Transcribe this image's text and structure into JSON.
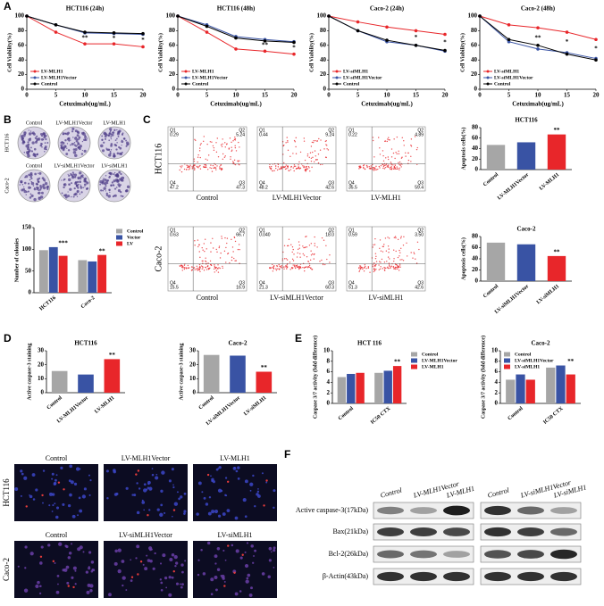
{
  "panel_labels": [
    "A",
    "B",
    "C",
    "D",
    "E",
    "F"
  ],
  "chart_data": [
    {
      "type": "line",
      "title": "HCT116 (24h)",
      "x_label": "Cetuximab(ug/mL)",
      "y_label": "Cell Viability(%)",
      "x": [
        0,
        5,
        10,
        15,
        20
      ],
      "xlim": [
        0,
        20
      ],
      "xticks": [
        0,
        5,
        10,
        15,
        20
      ],
      "ylim": [
        0,
        100
      ],
      "yticks": [
        0,
        20,
        40,
        60,
        80,
        100
      ],
      "series": [
        {
          "name": "LV-MLH1",
          "color": "#e8262a",
          "values": [
            100,
            78,
            62,
            62,
            58
          ]
        },
        {
          "name": "LV-MLH1Vector",
          "color": "#3953a4",
          "values": [
            100,
            88,
            77,
            76,
            75
          ]
        },
        {
          "name": "Control",
          "color": "#000000",
          "values": [
            100,
            88,
            78,
            77,
            76
          ]
        }
      ],
      "annotations": [
        "**",
        "*",
        "*"
      ],
      "legend": "lower left"
    },
    {
      "type": "line",
      "title": "HCT116 (48h)",
      "x_label": "Cetuximab(ug/mL)",
      "y_label": "Cell Viability(%)",
      "x": [
        0,
        5,
        10,
        15,
        20
      ],
      "xlim": [
        0,
        20
      ],
      "xticks": [
        0,
        5,
        10,
        15,
        20
      ],
      "ylim": [
        0,
        100
      ],
      "yticks": [
        0,
        20,
        40,
        60,
        80,
        100
      ],
      "series": [
        {
          "name": "LV-MLH1",
          "color": "#e8262a",
          "values": [
            100,
            78,
            55,
            52,
            48
          ]
        },
        {
          "name": "LV-MLH1Vector",
          "color": "#3953a4",
          "values": [
            100,
            88,
            72,
            68,
            65
          ]
        },
        {
          "name": "Control",
          "color": "#000000",
          "values": [
            100,
            86,
            70,
            66,
            64
          ]
        }
      ],
      "annotations": [
        "**",
        "*"
      ],
      "legend": "lower left"
    },
    {
      "type": "line",
      "title": "Caco-2  (24h)",
      "x_label": "Cetuximab(ug/mL)",
      "y_label": "Cell Viability(%)",
      "x": [
        0,
        5,
        10,
        15,
        20
      ],
      "xlim": [
        0,
        20
      ],
      "xticks": [
        0,
        5,
        10,
        15,
        20
      ],
      "ylim": [
        0,
        100
      ],
      "yticks": [
        0,
        20,
        40,
        60,
        80,
        100
      ],
      "series": [
        {
          "name": "LV-siMLH1",
          "color": "#e8262a",
          "values": [
            100,
            92,
            85,
            80,
            75
          ]
        },
        {
          "name": "LV-siMLH1Vector",
          "color": "#3953a4",
          "values": [
            100,
            80,
            65,
            60,
            52
          ]
        },
        {
          "name": "Control",
          "color": "#000000",
          "values": [
            100,
            80,
            67,
            60,
            53
          ]
        }
      ],
      "annotations": [
        "*",
        "*"
      ],
      "legend": "lower left"
    },
    {
      "type": "line",
      "title": "Caco-2  (48h)",
      "x_label": "Cetuximab(ug/mL)",
      "y_label": "Cell Viability(%)",
      "x": [
        0,
        5,
        10,
        15,
        20
      ],
      "xlim": [
        0,
        20
      ],
      "xticks": [
        0,
        5,
        10,
        15,
        20
      ],
      "ylim": [
        0,
        100
      ],
      "yticks": [
        0,
        20,
        40,
        60,
        80,
        100
      ],
      "series": [
        {
          "name": "LV-siMLH1",
          "color": "#e8262a",
          "values": [
            100,
            88,
            84,
            78,
            68
          ]
        },
        {
          "name": "LV-siMLH1Vector",
          "color": "#3953a4",
          "values": [
            100,
            65,
            55,
            50,
            42
          ]
        },
        {
          "name": "Control",
          "color": "#000000",
          "values": [
            100,
            68,
            60,
            48,
            40
          ]
        }
      ],
      "annotations": [
        "**",
        "*",
        "*"
      ],
      "legend": "lower left"
    },
    {
      "type": "bar",
      "y_label": "Number of colonies",
      "categories": [
        "HCT116",
        "Caco-2"
      ],
      "ylim": [
        0,
        150
      ],
      "yticks": [
        0,
        50,
        100,
        150
      ],
      "series": [
        {
          "name": "Control",
          "color": "#a6a6a6",
          "values": [
            98,
            75
          ]
        },
        {
          "name": "Vector",
          "color": "#3953a4",
          "values": [
            105,
            72
          ]
        },
        {
          "name": "LV",
          "color": "#e8262a",
          "values": [
            85,
            87
          ]
        }
      ],
      "annotations": [
        "***",
        "**"
      ],
      "legend": "right"
    },
    {
      "type": "bar",
      "title": "HCT116",
      "y_label": "Apoptosis cells(%)",
      "categories": [
        "Control",
        "LV-MLH1Vector",
        "LV-MLH1"
      ],
      "values": [
        47,
        52,
        67
      ],
      "colors": [
        "#a6a6a6",
        "#3953a4",
        "#e8262a"
      ],
      "ylim": [
        0,
        80
      ],
      "yticks": [
        0,
        20,
        40,
        60,
        80
      ],
      "annotations": [
        "**"
      ]
    },
    {
      "type": "bar",
      "title": "Caco-2",
      "y_label": "Apoptosis cells(%)",
      "categories": [
        "Control",
        "LV-siMLH1Vector",
        "LV-siMLH1"
      ],
      "values": [
        69,
        66,
        45
      ],
      "colors": [
        "#a6a6a6",
        "#3953a4",
        "#e8262a"
      ],
      "ylim": [
        0,
        80
      ],
      "yticks": [
        0,
        20,
        40,
        60,
        80
      ],
      "annotations": [
        "**"
      ]
    },
    {
      "type": "bar",
      "title": "HCT116",
      "y_label": "Active caspase-3 staining",
      "categories": [
        "Control",
        "LV-MLH1Vector",
        "LV-MLH1"
      ],
      "values": [
        15.5,
        13,
        24
      ],
      "colors": [
        "#a6a6a6",
        "#3953a4",
        "#e8262a"
      ],
      "ylim": [
        0,
        30
      ],
      "yticks": [
        0,
        10,
        20,
        30
      ],
      "annotations": [
        "**"
      ]
    },
    {
      "type": "bar",
      "title": "Caco-2",
      "y_label": "Active caspase-3 staining",
      "categories": [
        "Control",
        "LV-siMLH1Vector",
        "LV-siMLH1"
      ],
      "values": [
        27,
        26.5,
        15
      ],
      "colors": [
        "#a6a6a6",
        "#3953a4",
        "#e8262a"
      ],
      "ylim": [
        0,
        30
      ],
      "yticks": [
        0,
        10,
        20,
        30
      ],
      "annotations": [
        "**"
      ]
    },
    {
      "type": "bar",
      "title": "HCT 116",
      "y_label": "Caspase 3/7 activity (fold difference)",
      "categories": [
        "Control",
        "IC50 CTX"
      ],
      "ylim": [
        0,
        10
      ],
      "yticks": [
        0,
        2,
        4,
        6,
        8,
        10
      ],
      "series": [
        {
          "name": "Control",
          "color": "#a6a6a6",
          "values": [
            5,
            5.8
          ]
        },
        {
          "name": "LV-MLH1Vector",
          "color": "#3953a4",
          "values": [
            5.6,
            6.2
          ]
        },
        {
          "name": "LV-MLH1",
          "color": "#e8262a",
          "values": [
            5.8,
            7.1
          ]
        }
      ],
      "annotations": [
        "**"
      ],
      "legend": "right"
    },
    {
      "type": "bar",
      "title": "Caco-2",
      "y_label": "Caspase 3/7 activity (fold difference)",
      "categories": [
        "Control",
        "IC50 CTX"
      ],
      "ylim": [
        0,
        10
      ],
      "yticks": [
        0,
        2,
        4,
        6,
        8,
        10
      ],
      "series": [
        {
          "name": "Control",
          "color": "#a6a6a6",
          "values": [
            4.5,
            6.8
          ]
        },
        {
          "name": "LV-siMLH1Vector",
          "color": "#3953a4",
          "values": [
            5.5,
            7.2
          ]
        },
        {
          "name": "LV-siMLH1",
          "color": "#e8262a",
          "values": [
            4.5,
            5.5
          ]
        }
      ],
      "annotations": [
        "**"
      ],
      "legend": "upper left"
    }
  ],
  "colony": {
    "rows": [
      {
        "label": "HCT116",
        "columns": [
          "Control",
          "LV-MLH1Vector",
          "LV-MLH1"
        ]
      },
      {
        "label": "Caco-2",
        "columns": [
          "Control",
          "LV-siMLH1Vector",
          "LV-siMLH1"
        ]
      }
    ]
  },
  "flow": {
    "quadrants": [
      "Q1",
      "Q2",
      "Q4",
      "Q3"
    ],
    "rows": [
      {
        "label": "HCT116",
        "plots": [
          {
            "label": "Control",
            "values": [
              "0.29",
              "5.24",
              "47.2",
              "47.3"
            ]
          },
          {
            "label": "LV-MLH1Vector",
            "values": [
              "0.44",
              "9.24",
              "48.2",
              "42.6"
            ]
          },
          {
            "label": "LV-MLH1",
            "values": [
              "0.22",
              "4.89",
              "35.5",
              "59.4"
            ]
          }
        ]
      },
      {
        "label": "Caco-2",
        "plots": [
          {
            "label": "Control",
            "values": [
              "0.63",
              "66.7",
              "15.5",
              "16.9"
            ]
          },
          {
            "label": "LV-siMLH1Vector",
            "values": [
              "0.040",
              "18.0",
              "21.3",
              "60.3"
            ]
          },
          {
            "label": "LV-siMLH1",
            "values": [
              "0.59",
              "3.50",
              "51.3",
              "42.6"
            ]
          }
        ]
      }
    ]
  },
  "microscopy": {
    "rows": [
      {
        "label": "HCT116",
        "columns": [
          "Control",
          "LV-MLH1Vector",
          "LV-MLH1"
        ]
      },
      {
        "label": "Caco-2",
        "columns": [
          "Control",
          "LV-siMLH1Vector",
          "LV-siMLH1"
        ]
      }
    ]
  },
  "western": {
    "columns": [
      "Control",
      "LV-MLH1Vector",
      "LV-MLH1",
      "Control",
      "LV-siMLH1Vector",
      "LV-siMLH1"
    ],
    "rows": [
      "Active caspase-3(17kDa)",
      "Bax(21kDa)",
      "Bcl-2(26kDa)",
      "β-Actin(43kDa)"
    ]
  }
}
